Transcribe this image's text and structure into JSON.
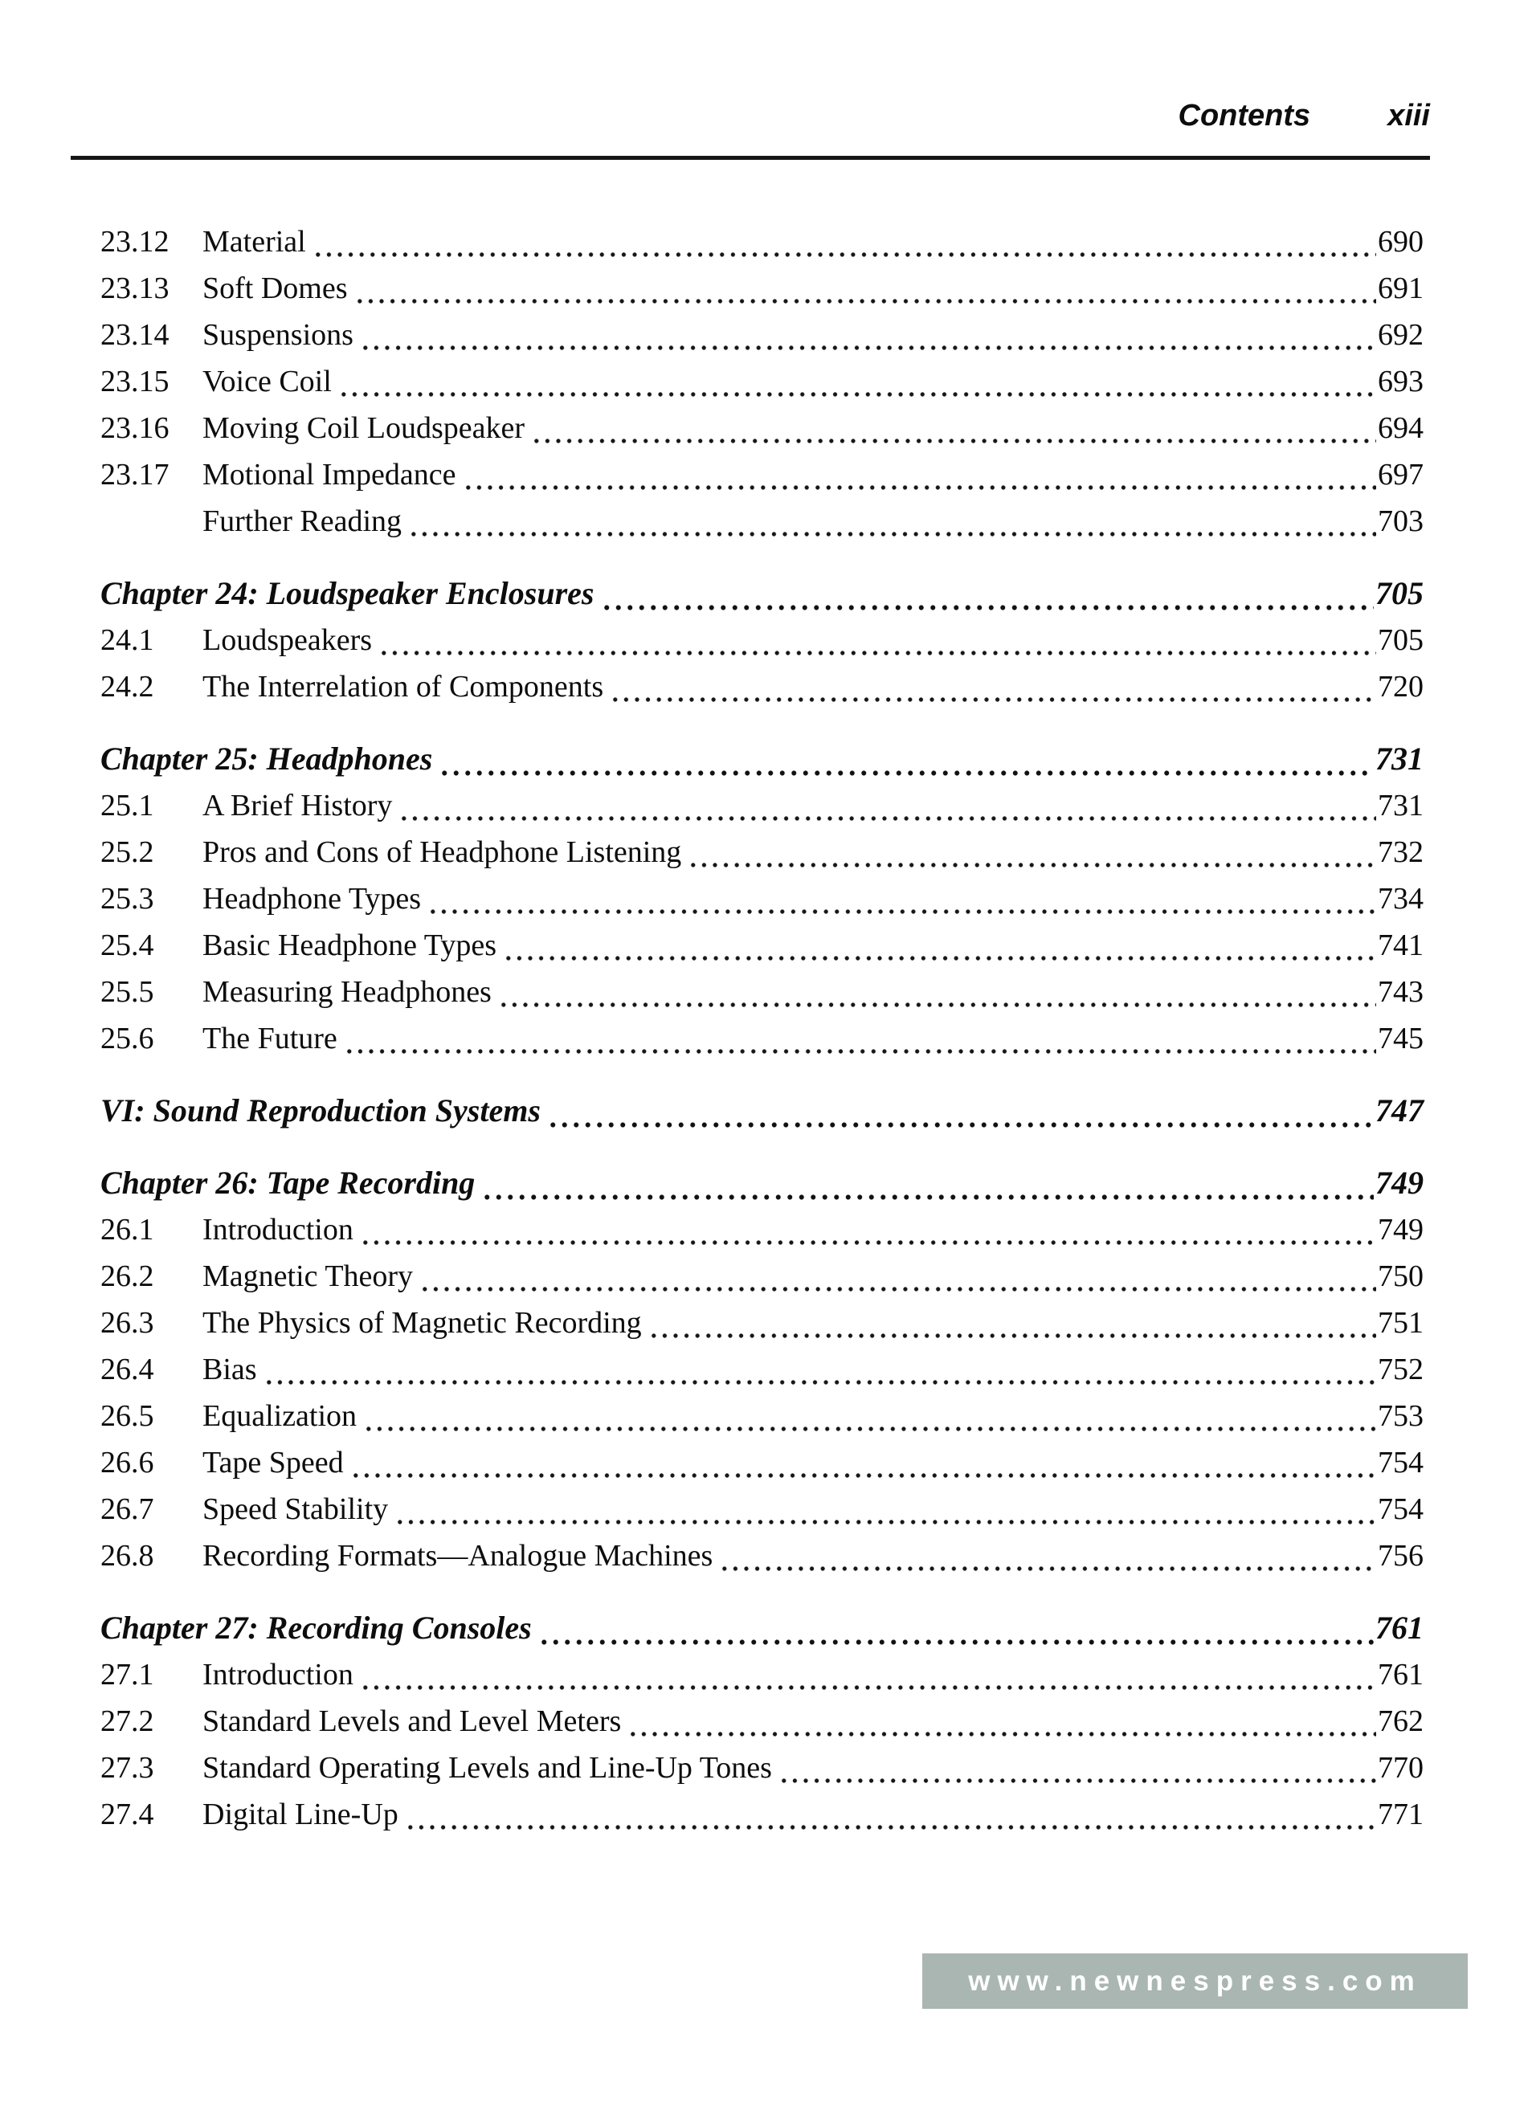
{
  "page": {
    "header": {
      "title": "Contents",
      "page_number": "xiii"
    },
    "footer": {
      "website": "www.newnespress.com",
      "bar_color": "#a9b6b2"
    },
    "colors": {
      "text": "#0d0d0d",
      "background": "#ffffff"
    }
  },
  "toc": {
    "sections": [
      {
        "rows": [
          {
            "style": "entry",
            "num": "23.12",
            "title": "Material",
            "page": "690"
          },
          {
            "style": "entry",
            "num": "23.13",
            "title": "Soft Domes",
            "page": "691"
          },
          {
            "style": "entry",
            "num": "23.14",
            "title": "Suspensions",
            "page": "692"
          },
          {
            "style": "entry",
            "num": "23.15",
            "title": "Voice Coil",
            "page": "693"
          },
          {
            "style": "entry",
            "num": "23.16",
            "title": "Moving Coil Loudspeaker",
            "page": "694"
          },
          {
            "style": "entry",
            "num": "23.17",
            "title": "Motional Impedance",
            "page": "697"
          },
          {
            "style": "entry",
            "num": "",
            "title": "Further Reading",
            "page": "703"
          }
        ]
      },
      {
        "rows": [
          {
            "style": "chapter",
            "title": "Chapter 24: Loudspeaker Enclosures",
            "page": "705"
          },
          {
            "style": "entry",
            "num": "24.1",
            "title": "Loudspeakers",
            "page": "705"
          },
          {
            "style": "entry",
            "num": "24.2",
            "title": "The Interrelation of Components",
            "page": "720"
          }
        ]
      },
      {
        "rows": [
          {
            "style": "chapter",
            "title": "Chapter 25: Headphones",
            "page": "731"
          },
          {
            "style": "entry",
            "num": "25.1",
            "title": "A Brief History",
            "page": "731"
          },
          {
            "style": "entry",
            "num": "25.2",
            "title": "Pros and Cons of Headphone Listening",
            "page": "732"
          },
          {
            "style": "entry",
            "num": "25.3",
            "title": "Headphone Types",
            "page": "734"
          },
          {
            "style": "entry",
            "num": "25.4",
            "title": "Basic Headphone Types",
            "page": "741"
          },
          {
            "style": "entry",
            "num": "25.5",
            "title": "Measuring Headphones",
            "page": "743"
          },
          {
            "style": "entry",
            "num": "25.6",
            "title": "The Future",
            "page": "745"
          }
        ]
      },
      {
        "rows": [
          {
            "style": "part",
            "title": "VI: Sound Reproduction Systems",
            "page": "747"
          }
        ]
      },
      {
        "rows": [
          {
            "style": "chapter",
            "title": "Chapter 26: Tape Recording",
            "page": "749"
          },
          {
            "style": "entry",
            "num": "26.1",
            "title": "Introduction",
            "page": "749"
          },
          {
            "style": "entry",
            "num": "26.2",
            "title": "Magnetic Theory",
            "page": "750"
          },
          {
            "style": "entry",
            "num": "26.3",
            "title": "The Physics of Magnetic Recording",
            "page": "751"
          },
          {
            "style": "entry",
            "num": "26.4",
            "title": "Bias",
            "page": "752"
          },
          {
            "style": "entry",
            "num": "26.5",
            "title": "Equalization",
            "page": "753"
          },
          {
            "style": "entry",
            "num": "26.6",
            "title": "Tape Speed",
            "page": "754"
          },
          {
            "style": "entry",
            "num": "26.7",
            "title": "Speed Stability",
            "page": "754"
          },
          {
            "style": "entry",
            "num": "26.8",
            "title": "Recording Formats—Analogue Machines",
            "page": "756"
          }
        ]
      },
      {
        "rows": [
          {
            "style": "chapter",
            "title": "Chapter 27: Recording Consoles",
            "page": "761"
          },
          {
            "style": "entry",
            "num": "27.1",
            "title": "Introduction",
            "page": "761"
          },
          {
            "style": "entry",
            "num": "27.2",
            "title": "Standard Levels and Level Meters",
            "page": "762"
          },
          {
            "style": "entry",
            "num": "27.3",
            "title": "Standard Operating Levels and Line-Up Tones",
            "page": "770"
          },
          {
            "style": "entry",
            "num": "27.4",
            "title": "Digital Line-Up",
            "page": "771"
          }
        ]
      }
    ]
  }
}
